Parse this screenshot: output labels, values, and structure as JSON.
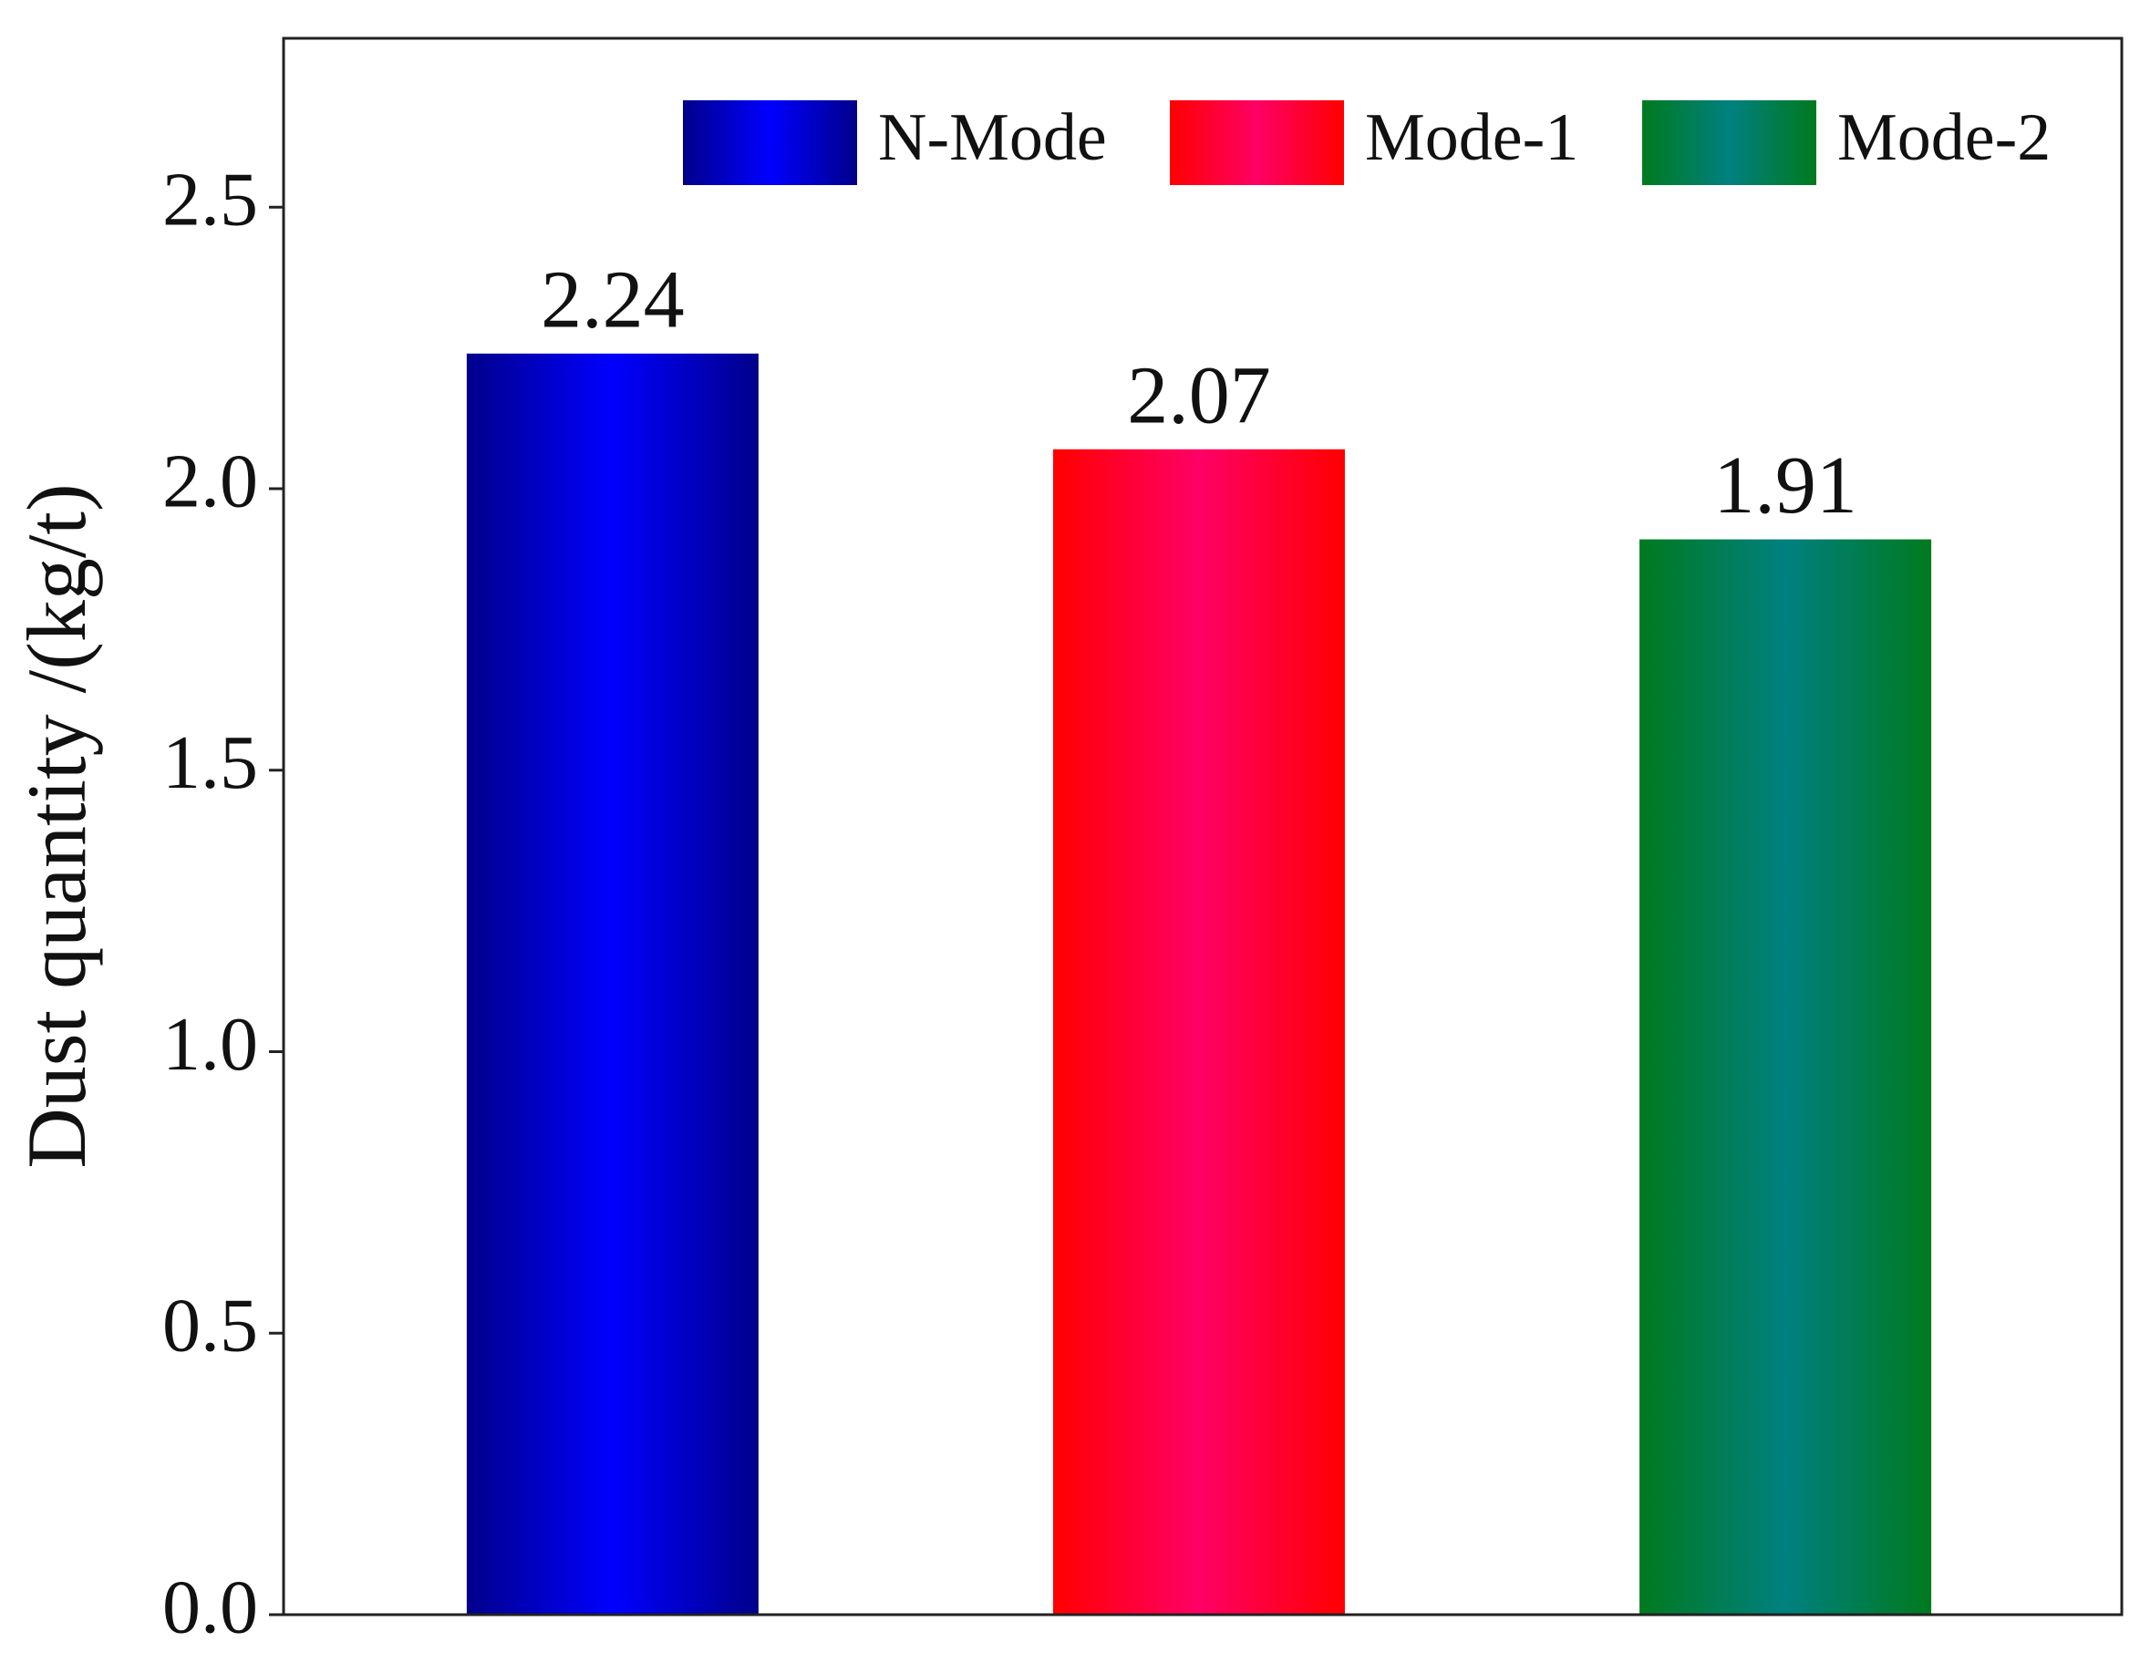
{
  "chart_data": {
    "type": "bar",
    "y_label": "Dust quantity /(kg/t)",
    "series": [
      {
        "name": "N-Mode",
        "color": "#0000ff",
        "edge_color": "#00008b",
        "values": [
          2.24
        ]
      },
      {
        "name": "Mode-1",
        "color": "#ff0066",
        "edge_color": "#ff0000",
        "values": [
          2.07
        ]
      },
      {
        "name": "Mode-2",
        "color": "#008080",
        "edge_color": "#007a1e",
        "values": [
          1.91
        ]
      }
    ],
    "ylim": [
      0,
      2.8
    ],
    "yticks": [
      {
        "value": 0,
        "label": "0.0"
      },
      0.5,
      {
        "value": 1,
        "label": "1.0"
      },
      1.5,
      {
        "value": 2,
        "label": "2.0"
      },
      2.5
    ],
    "grid": false,
    "legend": "top-right"
  }
}
